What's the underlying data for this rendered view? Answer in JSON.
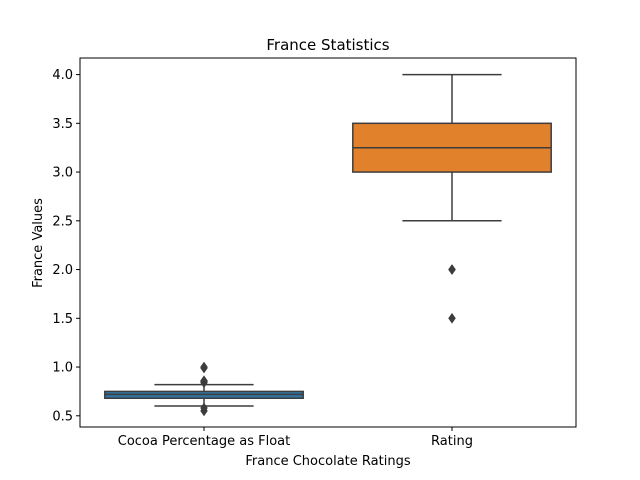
{
  "chart_data": {
    "type": "box",
    "title": "France Statistics",
    "xlabel": "France Chocolate Ratings",
    "ylabel": "France Values",
    "ylim": [
      0.385,
      4.17
    ],
    "yticks": [
      0.5,
      1.0,
      1.5,
      2.0,
      2.5,
      3.0,
      3.5,
      4.0
    ],
    "ytick_labels": [
      "0.5",
      "1.0",
      "1.5",
      "2.0",
      "2.5",
      "3.0",
      "3.5",
      "4.0"
    ],
    "grid": false,
    "categories": [
      "Cocoa Percentage as Float",
      "Rating"
    ],
    "boxes": [
      {
        "name": "Cocoa Percentage as Float",
        "color": "#3274a1",
        "whisker_low": 0.6,
        "q1": 0.68,
        "median": 0.72,
        "q3": 0.75,
        "whisker_high": 0.82,
        "outliers": [
          0.55,
          0.58,
          0.84,
          0.85,
          0.86,
          0.99,
          1.0
        ]
      },
      {
        "name": "Rating",
        "color": "#e1812c",
        "whisker_low": 2.5,
        "q1": 3.0,
        "median": 3.25,
        "q3": 3.5,
        "whisker_high": 4.0,
        "outliers": [
          2.0,
          2.0,
          1.5
        ]
      }
    ]
  }
}
